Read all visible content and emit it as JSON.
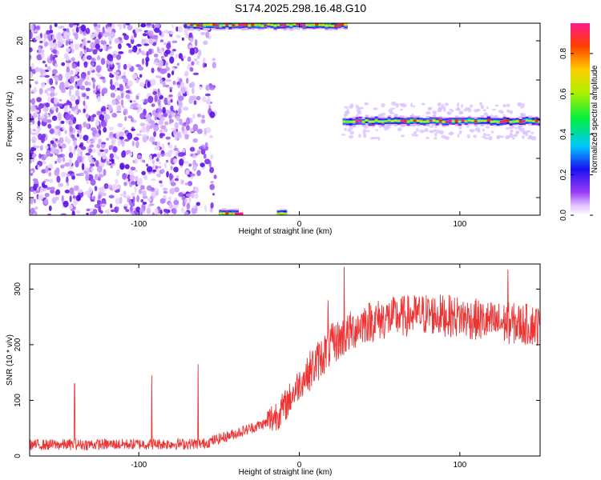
{
  "title": "S174.2025.298.16.48.G10",
  "chart_data": [
    {
      "type": "heatmap",
      "xlabel": "Height of straight line (km)",
      "ylabel": "Frequency (Hz)",
      "xlim": [
        -168,
        150
      ],
      "ylim": [
        -24.5,
        24.5
      ],
      "xticks": [
        -100,
        0,
        100
      ],
      "yticks": [
        -20,
        -10,
        0,
        10,
        20
      ],
      "colorbar": {
        "label": "Normalized spectral amplitude",
        "range": [
          0,
          0.95
        ],
        "ticks": [
          0.0,
          0.2,
          0.4,
          0.6,
          0.8
        ]
      },
      "ridges": [
        {
          "x_start": -70,
          "x_end": 28,
          "frequency": 24
        },
        {
          "x_start": -50,
          "x_end": -40,
          "frequency": -24
        },
        {
          "x_start": -14,
          "x_end": -10,
          "frequency": -24
        },
        {
          "x_start": 27,
          "x_end": 150,
          "frequency": -0.5
        }
      ],
      "noise_region": {
        "x_start": -168,
        "x_end": -58
      }
    },
    {
      "type": "line",
      "xlabel": "Height of straight line (km)",
      "ylabel": "SNR (10 * v/v)",
      "xlim": [
        -168,
        150
      ],
      "ylim": [
        0,
        345
      ],
      "xticks": [
        -100,
        0,
        100
      ],
      "yticks": [
        0,
        100,
        200,
        300
      ],
      "color": "#ee3333",
      "trend": {
        "x": [
          -168,
          -60,
          -40,
          -20,
          -10,
          0,
          10,
          20,
          28,
          40,
          60,
          80,
          100,
          120,
          150
        ],
        "y": [
          20,
          22,
          40,
          60,
          85,
          130,
          165,
          200,
          215,
          240,
          250,
          255,
          250,
          240,
          235
        ]
      },
      "spikes": [
        {
          "x": -140,
          "y": 130
        },
        {
          "x": -92,
          "y": 145
        },
        {
          "x": -63,
          "y": 165
        },
        {
          "x": 18,
          "y": 280
        },
        {
          "x": 28,
          "y": 340
        },
        {
          "x": 130,
          "y": 335
        }
      ]
    }
  ]
}
